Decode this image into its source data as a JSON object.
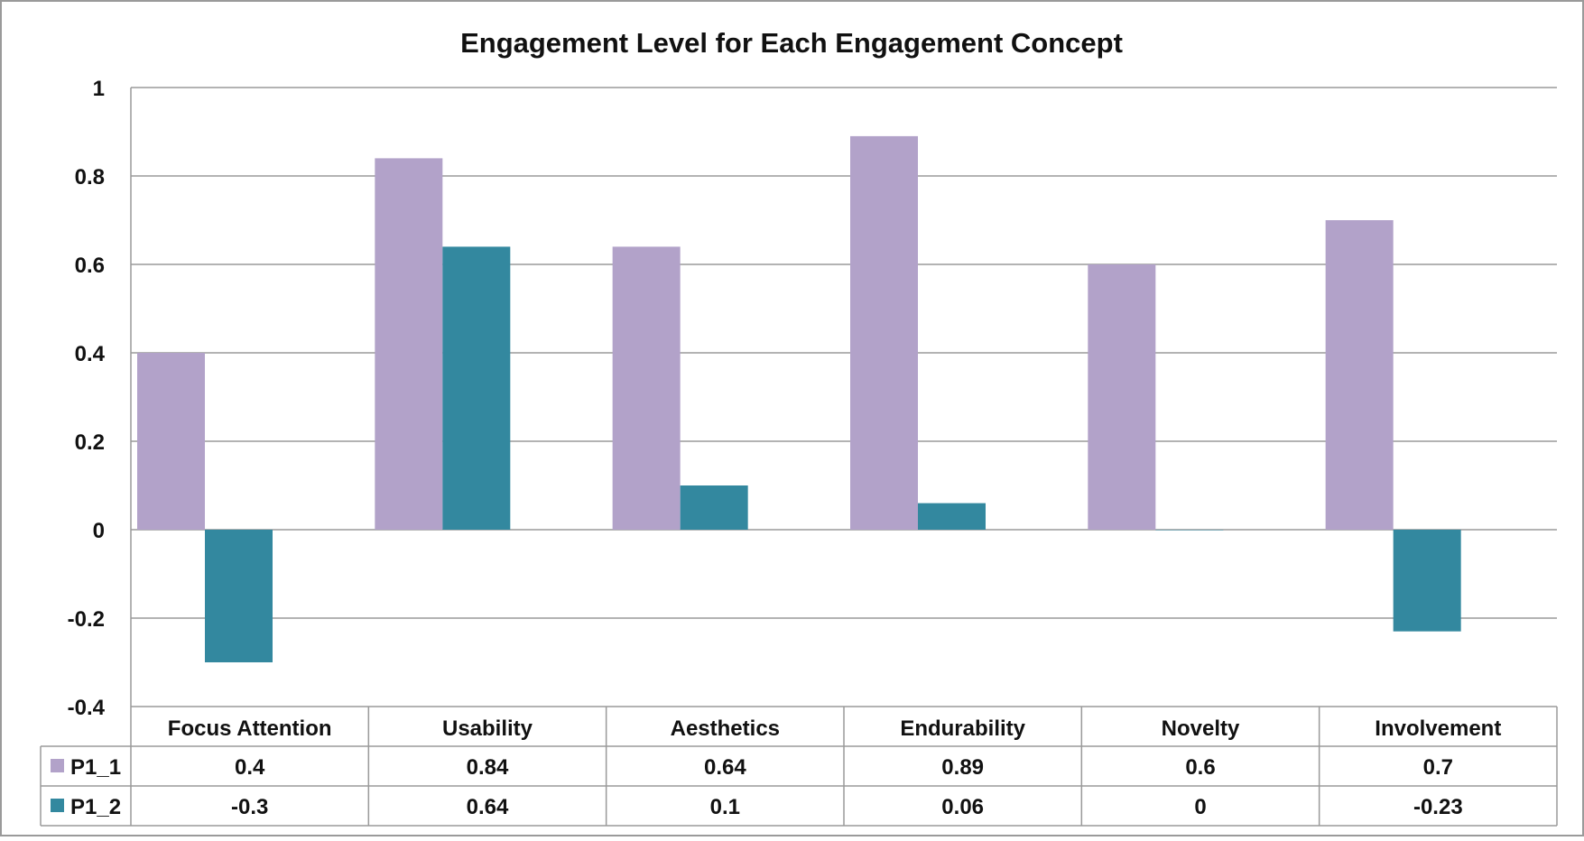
{
  "chart_data": {
    "type": "bar",
    "title": "Engagement Level for Each Engagement Concept",
    "categories": [
      "Focus Attention",
      "Usability",
      "Aesthetics",
      "Endurability",
      "Novelty",
      "Involvement"
    ],
    "series": [
      {
        "name": "P1_1",
        "values": [
          0.4,
          0.84,
          0.64,
          0.89,
          0.6,
          0.7
        ],
        "display": [
          "0.4",
          "0.84",
          "0.64",
          "0.89",
          "0.6",
          "0.7"
        ],
        "color": "#b2a2c9"
      },
      {
        "name": "P1_2",
        "values": [
          -0.3,
          0.64,
          0.1,
          0.06,
          0,
          -0.23
        ],
        "display": [
          "-0.3",
          "0.64",
          "0.1",
          "0.06",
          "0",
          "-0.23"
        ],
        "color": "#33889f"
      }
    ],
    "ylim": [
      -0.4,
      1
    ],
    "yticks": [
      1,
      0.8,
      0.6,
      0.4,
      0.2,
      0,
      -0.2,
      -0.4
    ],
    "ytick_labels": [
      "1",
      "0.8",
      "0.6",
      "0.4",
      "0.2",
      "0",
      "-0.2",
      "-0.4"
    ],
    "grid": true,
    "legend": "data-table",
    "colors": {
      "gridline": "#9a9a9a",
      "border": "#9a9a9a",
      "text": "#111111"
    }
  }
}
